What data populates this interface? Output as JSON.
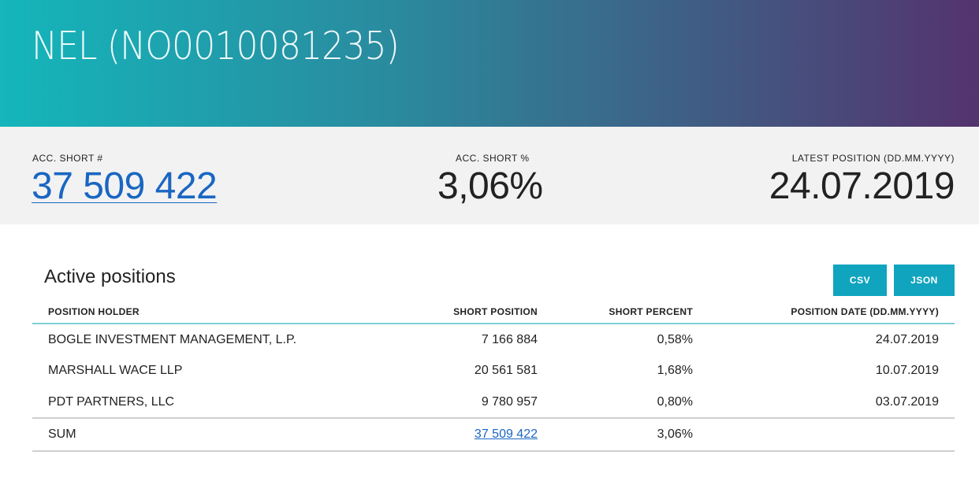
{
  "header": {
    "title": "NEL (NO0010081235)"
  },
  "stats": {
    "acc_short_num_label": "ACC. SHORT #",
    "acc_short_num_value": "37 509 422",
    "acc_short_pct_label": "ACC. SHORT %",
    "acc_short_pct_value": "3,06%",
    "latest_position_label": "LATEST POSITION (DD.MM.YYYY)",
    "latest_position_value": "24.07.2019"
  },
  "section": {
    "title": "Active positions",
    "csv_label": "CSV",
    "json_label": "JSON"
  },
  "table": {
    "headers": [
      "POSITION HOLDER",
      "SHORT POSITION",
      "SHORT PERCENT",
      "POSITION DATE (DD.MM.YYYY)"
    ],
    "rows": [
      [
        "BOGLE INVESTMENT MANAGEMENT, L.P.",
        "7 166 884",
        "0,58%",
        "24.07.2019"
      ],
      [
        "MARSHALL WACE LLP",
        "20 561 581",
        "1,68%",
        "10.07.2019"
      ],
      [
        "PDT PARTNERS, LLC",
        "9 780 957",
        "0,80%",
        "03.07.2019"
      ]
    ],
    "sum": {
      "label": "SUM",
      "short_position": "37 509 422",
      "short_percent": "3,06%"
    }
  }
}
